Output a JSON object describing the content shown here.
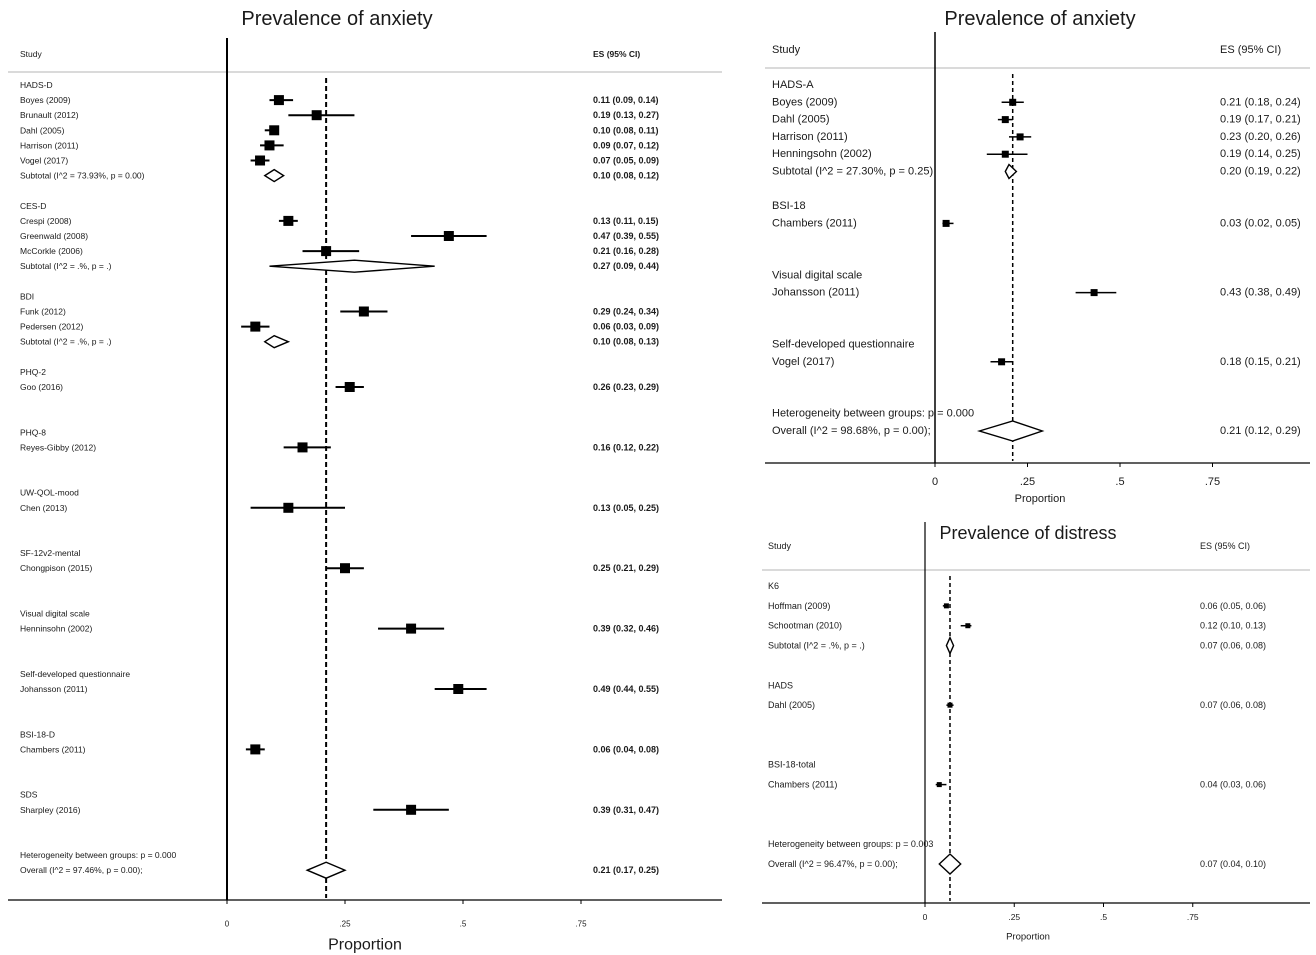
{
  "chart_data": [
    {
      "type": "forest",
      "title": "Prevalence of anxiety",
      "columns": {
        "study": "Study",
        "estimate": "ES (95% CI)"
      },
      "xlabel": "Proportion",
      "xticks": [
        0,
        0.25,
        0.5,
        0.75
      ],
      "xtick_labels": [
        "0",
        ".25",
        ".5",
        ".75"
      ],
      "groups": [
        {
          "name": "HADS-D",
          "studies": [
            {
              "label": "Boyes (2009)",
              "es": 0.11,
              "lo": 0.09,
              "hi": 0.14,
              "ci_text": "0.11 (0.09, 0.14)"
            },
            {
              "label": "Brunault (2012)",
              "es": 0.19,
              "lo": 0.13,
              "hi": 0.27,
              "ci_text": "0.19 (0.13, 0.27)"
            },
            {
              "label": "Dahl (2005)",
              "es": 0.1,
              "lo": 0.08,
              "hi": 0.11,
              "ci_text": "0.10 (0.08, 0.11)"
            },
            {
              "label": "Harrison (2011)",
              "es": 0.09,
              "lo": 0.07,
              "hi": 0.12,
              "ci_text": "0.09 (0.07, 0.12)"
            },
            {
              "label": "Vogel (2017)",
              "es": 0.07,
              "lo": 0.05,
              "hi": 0.09,
              "ci_text": "0.07 (0.05, 0.09)"
            }
          ],
          "subtotal": {
            "label": "Subtotal (I^2 = 73.93%, p = 0.00)",
            "es": 0.1,
            "lo": 0.08,
            "hi": 0.12,
            "ci_text": "0.10 (0.08, 0.12)"
          }
        },
        {
          "name": "CES-D",
          "studies": [
            {
              "label": "Crespi (2008)",
              "es": 0.13,
              "lo": 0.11,
              "hi": 0.15,
              "ci_text": "0.13 (0.11, 0.15)"
            },
            {
              "label": "Greenwald (2008)",
              "es": 0.47,
              "lo": 0.39,
              "hi": 0.55,
              "ci_text": "0.47 (0.39, 0.55)"
            },
            {
              "label": "McCorkle (2006)",
              "es": 0.21,
              "lo": 0.16,
              "hi": 0.28,
              "ci_text": "0.21 (0.16, 0.28)"
            }
          ],
          "subtotal": {
            "label": "Subtotal (I^2 = .%, p = .)",
            "es": 0.27,
            "lo": 0.09,
            "hi": 0.44,
            "ci_text": "0.27 (0.09, 0.44)"
          }
        },
        {
          "name": "BDI",
          "studies": [
            {
              "label": "Funk (2012)",
              "es": 0.29,
              "lo": 0.24,
              "hi": 0.34,
              "ci_text": "0.29 (0.24, 0.34)"
            },
            {
              "label": "Pedersen (2012)",
              "es": 0.06,
              "lo": 0.03,
              "hi": 0.09,
              "ci_text": "0.06 (0.03, 0.09)"
            }
          ],
          "subtotal": {
            "label": "Subtotal (I^2 = .%, p = .)",
            "es": 0.1,
            "lo": 0.08,
            "hi": 0.13,
            "ci_text": "0.10 (0.08, 0.13)"
          }
        },
        {
          "name": "PHQ-2",
          "studies": [
            {
              "label": "Goo (2016)",
              "es": 0.26,
              "lo": 0.23,
              "hi": 0.29,
              "ci_text": "0.26 (0.23, 0.29)"
            }
          ]
        },
        {
          "name": "PHQ-8",
          "studies": [
            {
              "label": "Reyes-Gibby (2012)",
              "es": 0.16,
              "lo": 0.12,
              "hi": 0.22,
              "ci_text": "0.16 (0.12, 0.22)"
            }
          ]
        },
        {
          "name": "UW-QOL-mood",
          "studies": [
            {
              "label": "Chen (2013)",
              "es": 0.13,
              "lo": 0.05,
              "hi": 0.25,
              "ci_text": "0.13 (0.05, 0.25)"
            }
          ]
        },
        {
          "name": "SF-12v2-mental",
          "studies": [
            {
              "label": "Chongpison (2015)",
              "es": 0.25,
              "lo": 0.21,
              "hi": 0.29,
              "ci_text": "0.25 (0.21, 0.29)"
            }
          ]
        },
        {
          "name": "Visual digital scale",
          "studies": [
            {
              "label": "Henninsohn (2002)",
              "es": 0.39,
              "lo": 0.32,
              "hi": 0.46,
              "ci_text": "0.39 (0.32, 0.46)"
            }
          ]
        },
        {
          "name": "Self-developed questionnaire",
          "studies": [
            {
              "label": "Johansson (2011)",
              "es": 0.49,
              "lo": 0.44,
              "hi": 0.55,
              "ci_text": "0.49 (0.44, 0.55)"
            }
          ]
        },
        {
          "name": "BSI-18-D",
          "studies": [
            {
              "label": "Chambers (2011)",
              "es": 0.06,
              "lo": 0.04,
              "hi": 0.08,
              "ci_text": "0.06 (0.04, 0.08)"
            }
          ]
        },
        {
          "name": "SDS",
          "studies": [
            {
              "label": "Sharpley (2016)",
              "es": 0.39,
              "lo": 0.31,
              "hi": 0.47,
              "ci_text": "0.39 (0.31, 0.47)"
            }
          ]
        }
      ],
      "heterogeneity": "Heterogeneity between groups: p = 0.000",
      "overall": {
        "label": "Overall (I^2 = 97.46%, p = 0.00);",
        "es": 0.21,
        "lo": 0.17,
        "hi": 0.25,
        "ci_text": "0.21 (0.17, 0.25)"
      }
    },
    {
      "type": "forest",
      "title": "Prevalence of anxiety",
      "columns": {
        "study": "Study",
        "estimate": "ES (95% CI)"
      },
      "xlabel": "Proportion",
      "xticks": [
        0,
        0.25,
        0.5,
        0.75
      ],
      "xtick_labels": [
        "0",
        ".25",
        ".5",
        ".75"
      ],
      "groups": [
        {
          "name": "HADS-A",
          "studies": [
            {
              "label": "Boyes (2009)",
              "es": 0.21,
              "lo": 0.18,
              "hi": 0.24,
              "ci_text": "0.21 (0.18, 0.24)"
            },
            {
              "label": "Dahl (2005)",
              "es": 0.19,
              "lo": 0.17,
              "hi": 0.21,
              "ci_text": "0.19 (0.17, 0.21)"
            },
            {
              "label": "Harrison (2011)",
              "es": 0.23,
              "lo": 0.2,
              "hi": 0.26,
              "ci_text": "0.23 (0.20, 0.26)"
            },
            {
              "label": "Henningsohn (2002)",
              "es": 0.19,
              "lo": 0.14,
              "hi": 0.25,
              "ci_text": "0.19 (0.14, 0.25)"
            }
          ],
          "subtotal": {
            "label": "Subtotal (I^2 = 27.30%, p = 0.25)",
            "es": 0.2,
            "lo": 0.19,
            "hi": 0.22,
            "ci_text": "0.20 (0.19, 0.22)"
          }
        },
        {
          "name": "BSI-18",
          "studies": [
            {
              "label": "Chambers (2011)",
              "es": 0.03,
              "lo": 0.02,
              "hi": 0.05,
              "ci_text": "0.03 (0.02, 0.05)"
            }
          ]
        },
        {
          "name": "Visual digital scale",
          "studies": [
            {
              "label": "Johansson (2011)",
              "es": 0.43,
              "lo": 0.38,
              "hi": 0.49,
              "ci_text": "0.43 (0.38, 0.49)"
            }
          ]
        },
        {
          "name": "Self-developed questionnaire",
          "studies": [
            {
              "label": "Vogel (2017)",
              "es": 0.18,
              "lo": 0.15,
              "hi": 0.21,
              "ci_text": "0.18 (0.15, 0.21)"
            }
          ]
        }
      ],
      "heterogeneity": "Heterogeneity between groups: p = 0.000",
      "overall": {
        "label": "Overall (I^2 = 98.68%, p = 0.00);",
        "es": 0.21,
        "lo": 0.12,
        "hi": 0.29,
        "ci_text": "0.21 (0.12, 0.29)"
      }
    },
    {
      "type": "forest",
      "title": "Prevalence of distress",
      "columns": {
        "study": "Study",
        "estimate": "ES (95% CI)"
      },
      "xlabel": "Proportion",
      "xticks": [
        0,
        0.25,
        0.5,
        0.75
      ],
      "xtick_labels": [
        "0",
        ".25",
        ".5",
        ".75"
      ],
      "groups": [
        {
          "name": "K6",
          "studies": [
            {
              "label": "Hoffman (2009)",
              "es": 0.06,
              "lo": 0.05,
              "hi": 0.06,
              "ci_text": "0.06 (0.05, 0.06)"
            },
            {
              "label": "Schootman (2010)",
              "es": 0.12,
              "lo": 0.1,
              "hi": 0.13,
              "ci_text": "0.12 (0.10, 0.13)"
            }
          ],
          "subtotal": {
            "label": "Subtotal (I^2 = .%, p = .)",
            "es": 0.07,
            "lo": 0.06,
            "hi": 0.08,
            "ci_text": "0.07 (0.06, 0.08)"
          }
        },
        {
          "name": "HADS",
          "studies": [
            {
              "label": "Dahl (2005)",
              "es": 0.07,
              "lo": 0.06,
              "hi": 0.08,
              "ci_text": "0.07 (0.06, 0.08)"
            }
          ]
        },
        {
          "name": "BSI-18-total",
          "studies": [
            {
              "label": "Chambers (2011)",
              "es": 0.04,
              "lo": 0.03,
              "hi": 0.06,
              "ci_text": "0.04 (0.03, 0.06)"
            }
          ]
        }
      ],
      "heterogeneity": "Heterogeneity between groups: p = 0.003",
      "overall": {
        "label": "Overall (I^2 = 96.47%, p = 0.00);",
        "es": 0.07,
        "lo": 0.04,
        "hi": 0.1,
        "ci_text": "0.07 (0.04, 0.10)"
      }
    }
  ]
}
